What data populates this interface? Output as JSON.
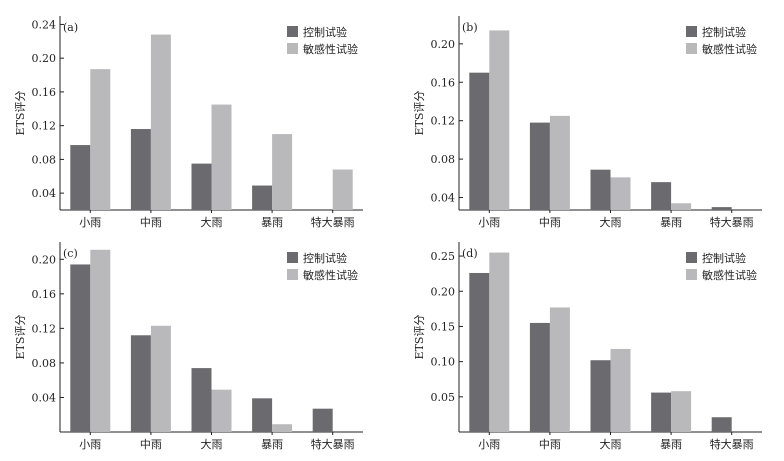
{
  "figure": {
    "series_colors": [
      "#6b6b6f",
      "#b9b9bc"
    ]
  },
  "chart_data": [
    {
      "type": "bar",
      "panel_label": "(a)",
      "ylabel": "ETS评分",
      "categories": [
        "小雨",
        "中雨",
        "大雨",
        "暴雨",
        "特大暴雨"
      ],
      "series": [
        {
          "name": "控制试验",
          "values": [
            0.097,
            0.116,
            0.075,
            0.049,
            0.0
          ]
        },
        {
          "name": "敏感性试验",
          "values": [
            0.187,
            0.228,
            0.145,
            0.11,
            0.068
          ]
        }
      ],
      "ylim": [
        0.02,
        0.25
      ],
      "yticks": [
        0.04,
        0.08,
        0.12,
        0.16,
        0.2,
        0.24
      ],
      "ytick_labels": [
        "0.04",
        "0.08",
        "0.12",
        "0.16",
        "0.20",
        "0.24"
      ],
      "legend": "top-right",
      "grid": false
    },
    {
      "type": "bar",
      "panel_label": "(b)",
      "ylabel": "ETS评分",
      "categories": [
        "小雨",
        "中雨",
        "大雨",
        "暴雨",
        "特大暴雨"
      ],
      "series": [
        {
          "name": "控制试验",
          "values": [
            0.17,
            0.118,
            0.069,
            0.056,
            0.03
          ]
        },
        {
          "name": "敏感性试验",
          "values": [
            0.214,
            0.125,
            0.061,
            0.034,
            0.027
          ]
        }
      ],
      "ylim": [
        0.027,
        0.229
      ],
      "yticks": [
        0.04,
        0.08,
        0.12,
        0.16,
        0.2
      ],
      "ytick_labels": [
        "0.04",
        "0.08",
        "0.12",
        "0.16",
        "0.20"
      ],
      "legend": "top-right",
      "grid": false
    },
    {
      "type": "bar",
      "panel_label": "(c)",
      "ylabel": "ETS评分",
      "categories": [
        "小雨",
        "中雨",
        "大雨",
        "暴雨",
        "特大暴雨"
      ],
      "series": [
        {
          "name": "控制试验",
          "values": [
            0.194,
            0.112,
            0.074,
            0.039,
            0.027
          ]
        },
        {
          "name": "敏感性试验",
          "values": [
            0.211,
            0.123,
            0.049,
            0.009,
            0.0
          ]
        }
      ],
      "ylim": [
        0.0,
        0.22
      ],
      "yticks": [
        0.04,
        0.08,
        0.12,
        0.16,
        0.2
      ],
      "ytick_labels": [
        "0.04",
        "0.08",
        "0.12",
        "0.16",
        "0.20"
      ],
      "legend": "top-right",
      "grid": false
    },
    {
      "type": "bar",
      "panel_label": "(d)",
      "ylabel": "ETS评分",
      "categories": [
        "小雨",
        "中雨",
        "大雨",
        "暴雨",
        "特大暴雨"
      ],
      "series": [
        {
          "name": "控制试验",
          "values": [
            0.226,
            0.155,
            0.102,
            0.056,
            0.021
          ]
        },
        {
          "name": "敏感性试验",
          "values": [
            0.255,
            0.177,
            0.118,
            0.058,
            0.0
          ]
        }
      ],
      "ylim": [
        0.0,
        0.27
      ],
      "yticks": [
        0.05,
        0.1,
        0.15,
        0.2,
        0.25
      ],
      "ytick_labels": [
        "0.05",
        "0.10",
        "0.15",
        "0.20",
        "0.25"
      ],
      "legend": "top-right",
      "grid": false
    }
  ]
}
